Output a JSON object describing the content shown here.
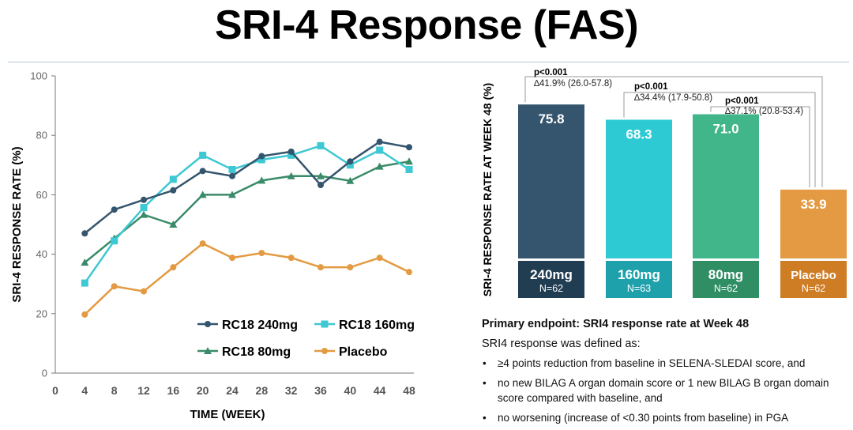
{
  "title": "SRI-4 Response (FAS)",
  "colors": {
    "rc18_240": "#34556d",
    "rc18_160": "#3ec8d3",
    "rc18_80": "#3a8b69",
    "placebo": "#e39a42",
    "bar_240": "#34556d",
    "bar_160": "#2ecad4",
    "bar_80": "#41b68a",
    "bar_placebo": "#e39a42",
    "label_240": "#213d52",
    "label_160": "#1fa1ab",
    "label_80": "#2f8e64",
    "label_placebo": "#cf7d24",
    "axis": "#777777",
    "bracket": "#999999"
  },
  "chart_data": [
    {
      "type": "line",
      "xlabel": "TIME (WEEK)",
      "ylabel": "SRI-4 RESPONSE RATE (%)",
      "x": [
        4,
        8,
        12,
        16,
        20,
        24,
        28,
        32,
        36,
        40,
        44,
        48
      ],
      "xticks": [
        "0",
        "4",
        "8",
        "12",
        "16",
        "20",
        "24",
        "28",
        "32",
        "36",
        "40",
        "44",
        "48"
      ],
      "yticks": [
        "0",
        "20",
        "40",
        "60",
        "80",
        "100"
      ],
      "xlim": [
        0,
        48
      ],
      "ylim": [
        0,
        100
      ],
      "series": [
        {
          "name": "RC18 240mg",
          "marker": "circle",
          "color": "#34556d",
          "values": [
            47.0,
            55.0,
            58.3,
            61.5,
            68.0,
            66.3,
            73.0,
            74.5,
            63.3,
            71.2,
            77.8,
            76.0
          ]
        },
        {
          "name": "RC18 160mg",
          "marker": "square",
          "color": "#3ec8d3",
          "values": [
            30.3,
            44.5,
            55.7,
            65.2,
            73.3,
            68.5,
            71.8,
            73.3,
            76.5,
            70.0,
            75.0,
            68.5
          ]
        },
        {
          "name": "RC18 80mg",
          "marker": "triangle",
          "color": "#3a8b69",
          "values": [
            37.2,
            45.3,
            53.3,
            50.0,
            60.0,
            60.0,
            64.8,
            66.3,
            66.3,
            64.7,
            69.5,
            71.2
          ]
        },
        {
          "name": "Placebo",
          "marker": "circle",
          "color": "#e39a42",
          "values": [
            19.7,
            29.2,
            27.5,
            35.6,
            43.6,
            38.8,
            40.4,
            38.8,
            35.6,
            35.6,
            38.8,
            34.0
          ]
        }
      ],
      "legend": {
        "position": "bottom-center",
        "rows": [
          [
            "RC18 240mg",
            "RC18 160mg"
          ],
          [
            "RC18 80mg",
            "Placebo"
          ]
        ]
      }
    },
    {
      "type": "bar",
      "ylabel": "SRI-4 RESPONSE RATE AT WEEK 48 (%)",
      "ylim": [
        0,
        100
      ],
      "categories": [
        "240mg",
        "160mg",
        "80mg",
        "Placebo"
      ],
      "values": [
        75.8,
        68.3,
        71.0,
        33.9
      ],
      "value_labels": [
        "75.8",
        "68.3",
        "71.0",
        "33.9"
      ],
      "n_labels": [
        "N=62",
        "N=63",
        "N=62",
        "N=62"
      ],
      "comparisons": [
        {
          "from": "240mg",
          "to": "Placebo",
          "p": "p<0.001",
          "delta": "∆41.9% (26.0-57.8)"
        },
        {
          "from": "160mg",
          "to": "Placebo",
          "p": "p<0.001",
          "delta": "∆34.4% (17.9-50.8)"
        },
        {
          "from": "80mg",
          "to": "Placebo",
          "p": "p<0.001",
          "delta": "∆37.1% (20.8-53.4)"
        }
      ]
    }
  ],
  "notes": {
    "heading": "Primary endpoint: SRI4 response rate at Week 48",
    "intro": "SRI4 response was defined as:",
    "bullets": [
      "≥4 points reduction from baseline in SELENA-SLEDAI score, and",
      "no new BILAG A organ domain score or 1 new BILAG B organ domain score compared with baseline, and",
      "no worsening (increase of <0.30 points from baseline) in PGA"
    ]
  }
}
